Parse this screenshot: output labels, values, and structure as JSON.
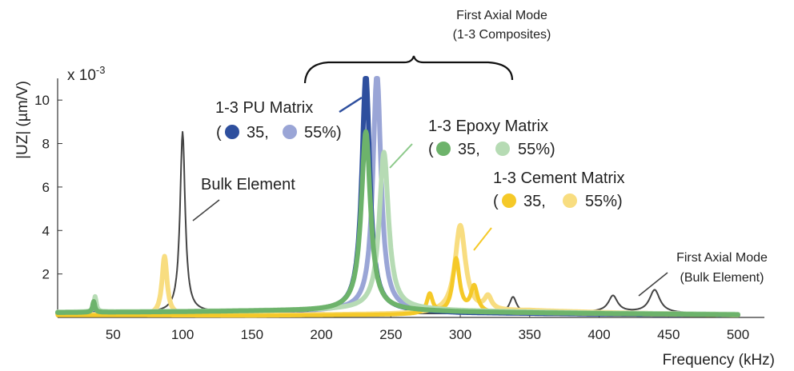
{
  "chart_data": {
    "type": "line",
    "xlabel": "Frequency (kHz)",
    "ylabel": "|UZ| (µm/V)",
    "y_multiplier": {
      "base": "x 10",
      "exponent": "-3"
    },
    "xlim": [
      10,
      500
    ],
    "ylim": [
      0,
      11
    ],
    "x_ticks": [
      50,
      100,
      150,
      200,
      250,
      300,
      350,
      400,
      450,
      500
    ],
    "y_ticks": [
      2,
      4,
      6,
      8,
      10
    ],
    "grid": false,
    "legend": "none (inline annotations)",
    "colors": {
      "bulk": "#444444",
      "pu_35": "#2e4f9e",
      "pu_55": "#9aa5d6",
      "epoxy_35": "#6db36b",
      "epoxy_55": "#b6dbb4",
      "cement_35": "#f5c928",
      "cement_55": "#f8dd80"
    },
    "series": [
      {
        "key": "bulk_peaks",
        "color": "#444444",
        "width": 2,
        "base": {
          "x": [
            10,
            60,
            120,
            200,
            260,
            300,
            350,
            400,
            450,
            500
          ],
          "y": [
            0.2,
            0.22,
            0.25,
            0.2,
            0.18,
            0.18,
            0.2,
            0.25,
            0.2,
            0.15
          ]
        },
        "peaks": [
          {
            "x": 100,
            "y": 8.3,
            "hw": 2.2
          },
          {
            "x": 338,
            "y": 0.75,
            "hw": 3
          },
          {
            "x": 410,
            "y": 0.75,
            "hw": 4
          },
          {
            "x": 440,
            "y": 1.05,
            "hw": 4.5
          }
        ]
      },
      {
        "key": "pu_55",
        "color": "#9aa5d6",
        "width": 6,
        "base": {
          "x": [
            10,
            100,
            200,
            240,
            300,
            400,
            500
          ],
          "y": [
            0.18,
            0.22,
            0.3,
            0.35,
            0.2,
            0.15,
            0.12
          ]
        },
        "peaks": [
          {
            "x": 240,
            "y": 10.9,
            "hw": 3.5
          }
        ]
      },
      {
        "key": "pu_35",
        "color": "#2e4f9e",
        "width": 6,
        "base": {
          "x": [
            10,
            100,
            200,
            232,
            300,
            400,
            500
          ],
          "y": [
            0.18,
            0.22,
            0.3,
            0.35,
            0.2,
            0.15,
            0.12
          ]
        },
        "peaks": [
          {
            "x": 232,
            "y": 10.9,
            "hw": 3.5
          }
        ]
      },
      {
        "key": "cement_55",
        "color": "#f8dd80",
        "width": 6,
        "base": {
          "x": [
            10,
            60,
            150,
            250,
            350,
            420,
            500
          ],
          "y": [
            0.15,
            0.12,
            0.1,
            0.15,
            0.3,
            0.2,
            0.12
          ]
        },
        "peaks": [
          {
            "x": 87,
            "y": 2.7,
            "hw": 2.2
          },
          {
            "x": 300,
            "y": 4.0,
            "hw": 4.5
          },
          {
            "x": 320,
            "y": 0.6,
            "hw": 3
          }
        ]
      },
      {
        "key": "cement_35",
        "color": "#f5c928",
        "width": 5,
        "base": {
          "x": [
            10,
            60,
            150,
            250,
            350,
            420,
            500
          ],
          "y": [
            0.1,
            0.1,
            0.08,
            0.12,
            0.2,
            0.15,
            0.1
          ]
        },
        "peaks": [
          {
            "x": 278,
            "y": 0.9,
            "hw": 2.5
          },
          {
            "x": 297,
            "y": 2.5,
            "hw": 3
          },
          {
            "x": 310,
            "y": 1.2,
            "hw": 3
          }
        ]
      },
      {
        "key": "epoxy_55",
        "color": "#b6dbb4",
        "width": 6,
        "base": {
          "x": [
            10,
            100,
            200,
            245,
            300,
            400,
            500
          ],
          "y": [
            0.25,
            0.28,
            0.35,
            0.4,
            0.3,
            0.2,
            0.15
          ]
        },
        "peaks": [
          {
            "x": 37,
            "y": 0.7,
            "hw": 1
          },
          {
            "x": 245,
            "y": 7.2,
            "hw": 4
          }
        ]
      },
      {
        "key": "epoxy_35",
        "color": "#6db36b",
        "width": 6,
        "base": {
          "x": [
            10,
            100,
            200,
            232,
            300,
            400,
            500
          ],
          "y": [
            0.22,
            0.26,
            0.32,
            0.35,
            0.25,
            0.18,
            0.12
          ]
        },
        "peaks": [
          {
            "x": 36,
            "y": 0.5,
            "hw": 1
          },
          {
            "x": 232,
            "y": 8.2,
            "hw": 4
          }
        ]
      }
    ],
    "annotations": {
      "first_axial_composites": [
        "First Axial Mode",
        "(1-3 Composites)"
      ],
      "first_axial_bulk": [
        "First Axial Mode",
        "(Bulk Element)"
      ],
      "bulk_element": "Bulk Element",
      "pu": {
        "title": "1-3 PU Matrix",
        "open": "(",
        "v1": "35,",
        "v2": "55%)"
      },
      "epoxy": {
        "title": "1-3 Epoxy Matrix",
        "open": "(",
        "v1": "35,",
        "v2": "55%)"
      },
      "cement": {
        "title": "1-3 Cement Matrix",
        "open": "(",
        "v1": "35,",
        "v2": "55%)"
      }
    }
  }
}
